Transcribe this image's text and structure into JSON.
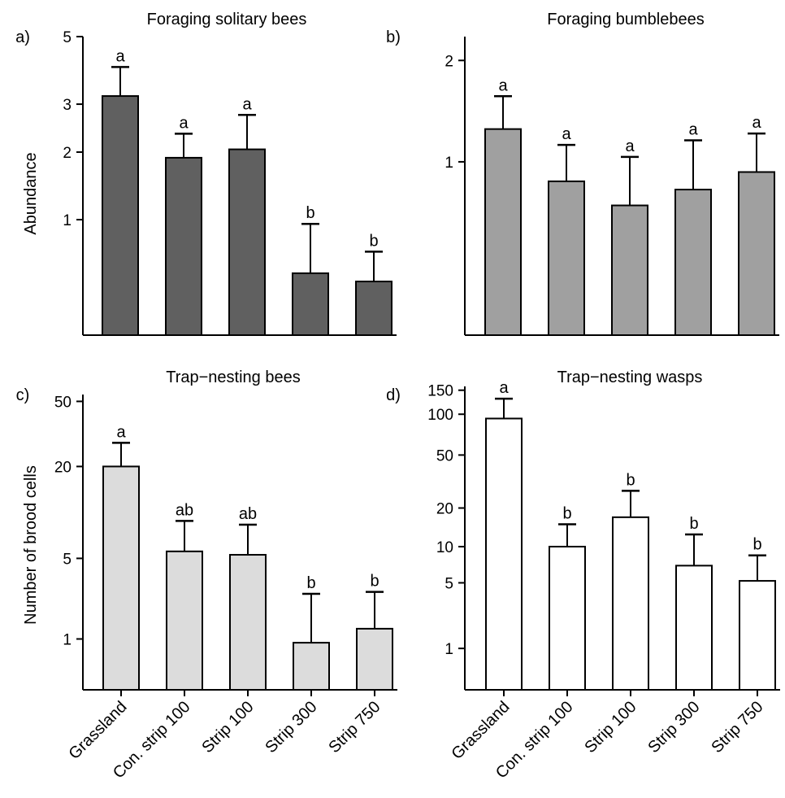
{
  "ylabel_top": "Abundance",
  "ylabel_bottom": "Number of brood cells",
  "categories": [
    "Grassland",
    "Con. strip 100",
    "Strip 100",
    "Strip 300",
    "Strip 750"
  ],
  "chart_data": [
    {
      "panel": "a)",
      "type": "bar",
      "title": "Foraging solitary bees",
      "yscale": "log1p",
      "ylim": [
        0,
        5
      ],
      "yticks": [
        1,
        2,
        3,
        5
      ],
      "bar_color": "#606060",
      "categories": [
        "Grassland",
        "Con. strip 100",
        "Strip 100",
        "Strip 300",
        "Strip 750"
      ],
      "values": [
        3.2,
        1.9,
        2.05,
        0.45,
        0.38
      ],
      "error_upper": [
        4.0,
        2.35,
        2.75,
        0.95,
        0.65
      ],
      "letters": [
        "a",
        "a",
        "a",
        "b",
        "b"
      ]
    },
    {
      "panel": "b)",
      "type": "bar",
      "title": "Foraging bumblebees",
      "yscale": "log1p",
      "ylim": [
        0,
        2.3
      ],
      "yticks": [
        1,
        2
      ],
      "bar_color": "#a0a0a0",
      "categories": [
        "Grassland",
        "Con. strip 100",
        "Strip 100",
        "Strip 300",
        "Strip 750"
      ],
      "values": [
        1.28,
        0.85,
        0.68,
        0.79,
        0.92
      ],
      "error_upper": [
        1.6,
        1.14,
        1.04,
        1.18,
        1.24
      ],
      "letters": [
        "a",
        "a",
        "a",
        "a",
        "a"
      ]
    },
    {
      "panel": "c)",
      "type": "bar",
      "title": "Trap−nesting bees",
      "yscale": "log1p",
      "ylim": [
        0,
        55
      ],
      "yticks": [
        1,
        5,
        20,
        50
      ],
      "bar_color": "#dcdcdc",
      "categories": [
        "Grassland",
        "Con. strip 100",
        "Strip 100",
        "Strip 300",
        "Strip 750"
      ],
      "values": [
        20.0,
        5.6,
        5.3,
        0.9,
        1.3
      ],
      "error_upper": [
        28.0,
        9.0,
        8.5,
        2.7,
        2.8
      ],
      "letters": [
        "a",
        "ab",
        "ab",
        "b",
        "b"
      ]
    },
    {
      "panel": "d)",
      "type": "bar",
      "title": "Trap−nesting wasps",
      "yscale": "log1p",
      "ylim": [
        0,
        160
      ],
      "yticks": [
        1,
        5,
        10,
        20,
        50,
        100,
        150
      ],
      "bar_color": "#ffffff",
      "categories": [
        "Grassland",
        "Con. strip 100",
        "Strip 100",
        "Strip 300",
        "Strip 750"
      ],
      "values": [
        93,
        10,
        17,
        7,
        5.2
      ],
      "error_upper": [
        130,
        15,
        27,
        12.5,
        8.5
      ],
      "letters": [
        "a",
        "b",
        "b",
        "b",
        "b"
      ]
    }
  ]
}
